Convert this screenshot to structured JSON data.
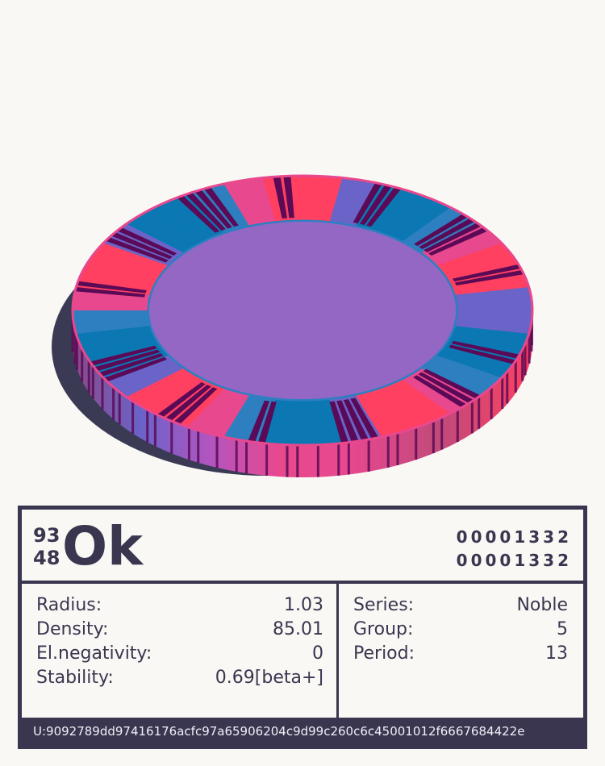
{
  "element": {
    "mass_number": "93",
    "atomic_number": "48",
    "symbol": "Ok",
    "code_top": "00001332",
    "code_bottom": "00001332"
  },
  "properties_left": [
    {
      "label": "Radius:",
      "value": "1.03"
    },
    {
      "label": "Density:",
      "value": "85.01"
    },
    {
      "label": "El.negativity:",
      "value": "0"
    },
    {
      "label": "Stability:",
      "value": "0.69[beta+]"
    }
  ],
  "properties_right": [
    {
      "label": "Series:",
      "value": "Noble"
    },
    {
      "label": "Group:",
      "value": "5"
    },
    {
      "label": "Period:",
      "value": "13"
    }
  ],
  "footer": {
    "uid": "U:9092789dd97416176acfc97a65906204c9d99c260c6c45001012f6667684422e"
  },
  "colors": {
    "ink": "#3a3650",
    "background": "#faf8f4",
    "ring_center": "#9467c4",
    "ring_palette": [
      "#ff4060",
      "#e8488e",
      "#b255c0",
      "#6a63c8",
      "#2e7fc0",
      "#0b78b4"
    ],
    "stripe": "#5a0a56",
    "shadow": "#3a3a55"
  }
}
